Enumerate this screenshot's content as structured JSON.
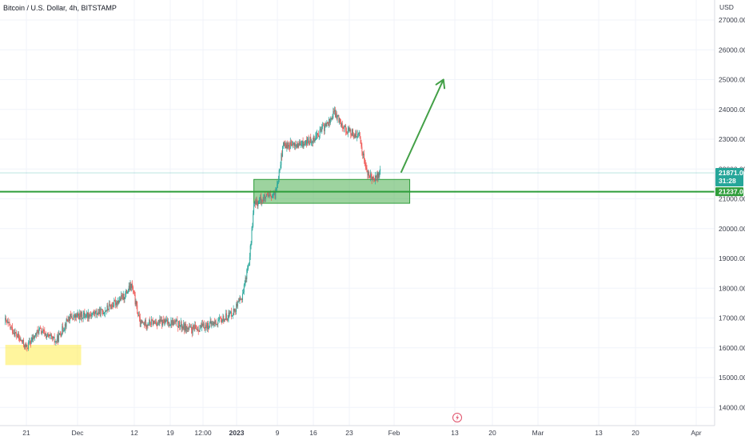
{
  "header": {
    "title": "Bitcoin / U.S. Dollar, 4h, BITSTAMP"
  },
  "price_axis": {
    "currency_label": "USD"
  },
  "tags": {
    "last_price": "21871.00",
    "countdown": "31:28",
    "level_price": "21237.02"
  },
  "colors": {
    "up": "#26a69a",
    "down": "#ef5350",
    "level_line": "#2e9d3a",
    "support_zone": "#4caf50",
    "demand_zone": "#ffeb3b",
    "last_price_tag": "#26a69a",
    "arrow": "#43a047"
  },
  "icons": {
    "event_marker": "lightning-icon"
  },
  "chart_data": {
    "type": "candlestick",
    "title": "Bitcoin / U.S. Dollar, 4h, BITSTAMP",
    "y_axis": {
      "label": "USD",
      "ticks": [
        14000,
        15000,
        16000,
        17000,
        18000,
        19000,
        20000,
        21000,
        22000,
        23000,
        24000,
        25000,
        26000,
        27000
      ],
      "ylim": [
        13500,
        27500
      ]
    },
    "x_axis": {
      "ticks": [
        "21",
        "Dec",
        "12",
        "19",
        "12:00",
        "2023",
        "9",
        "16",
        "23",
        "Feb",
        "13",
        "20",
        "Mar",
        "13",
        "20",
        "Apr"
      ]
    },
    "price_path": [
      [
        "Nov 16",
        16900
      ],
      [
        "Nov 21",
        16000
      ],
      [
        "Nov 24",
        16600
      ],
      [
        "Nov 28",
        16200
      ],
      [
        "Dec 1",
        17000
      ],
      [
        "Dec 5",
        17100
      ],
      [
        "Dec 9",
        17200
      ],
      [
        "Dec 14",
        17700
      ],
      [
        "Dec 16",
        18100
      ],
      [
        "Dec 18",
        16800
      ],
      [
        "Dec 21",
        16850
      ],
      [
        "Dec 26",
        16850
      ],
      [
        "Dec 30",
        16600
      ],
      [
        "Jan 2",
        16700
      ],
      [
        "Jan 6",
        16900
      ],
      [
        "Jan 9",
        17200
      ],
      [
        "Jan 11",
        17600
      ],
      [
        "Jan 13",
        19000
      ],
      [
        "Jan 14",
        20800
      ],
      [
        "Jan 16",
        21000
      ],
      [
        "Jan 19",
        21100
      ],
      [
        "Jan 21",
        22800
      ],
      [
        "Jan 25",
        22800
      ],
      [
        "Jan 28",
        23000
      ],
      [
        "Feb 1",
        23600
      ],
      [
        "Feb 2",
        23900
      ],
      [
        "Feb 5",
        23300
      ],
      [
        "Feb 8",
        23100
      ],
      [
        "Feb 10",
        21800
      ],
      [
        "Feb 12",
        21700
      ],
      [
        "Feb 13",
        21871
      ]
    ],
    "last_price": 21871.0,
    "horizontal_levels": [
      {
        "price": 21237.02,
        "color": "#2e9d3a"
      }
    ],
    "zones": [
      {
        "name": "support",
        "from_date": "Jan 14",
        "to_date": "Feb 20",
        "low": 20850,
        "high": 21650,
        "color": "#4caf50"
      },
      {
        "name": "demand",
        "from_date": "Nov 16",
        "to_date": "Dec 4",
        "low": 15420,
        "high": 16100,
        "color": "#ffeb3b"
      }
    ],
    "projection_arrow": {
      "from_date": "Feb 18",
      "from_price": 21900,
      "to_date": "Feb 28",
      "to_price": 25000
    },
    "grid": true
  }
}
